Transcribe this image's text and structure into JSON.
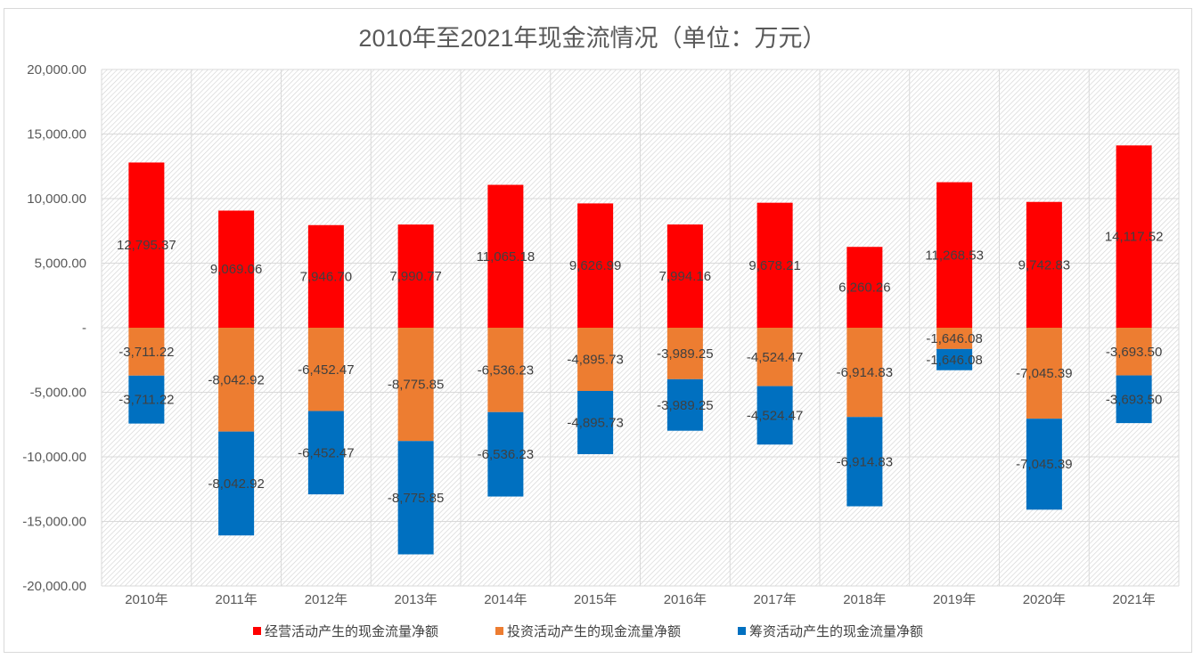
{
  "chart_data": {
    "type": "bar",
    "stacked": true,
    "title": "2010年至2021年现金流情况（单位：万元）",
    "xlabel": "",
    "ylabel": "",
    "ylim": [
      -20000,
      20000
    ],
    "yticks": [
      20000,
      15000,
      10000,
      5000,
      0,
      -5000,
      -10000,
      -15000,
      -20000
    ],
    "ytick_labels": [
      "20,000.00",
      "15,000.00",
      "10,000.00",
      "5,000.00",
      "-",
      "-5,000.00",
      "-10,000.00",
      "-15,000.00",
      "-20,000.00"
    ],
    "grid": true,
    "legend_position": "bottom",
    "categories": [
      "2010年",
      "2011年",
      "2012年",
      "2013年",
      "2014年",
      "2015年",
      "2016年",
      "2017年",
      "2018年",
      "2019年",
      "2020年",
      "2021年"
    ],
    "series": [
      {
        "name": "经营活动产生的现金流量净额",
        "color": "#ff0000",
        "values": [
          12795.37,
          9069.06,
          7946.7,
          7990.77,
          11065.18,
          9626.99,
          7994.16,
          9678.21,
          6260.26,
          11268.53,
          9742.83,
          14117.52
        ]
      },
      {
        "name": "投资活动产生的现金流量净额",
        "color": "#ed7d31",
        "values": [
          -3711.22,
          -8042.92,
          -6452.47,
          -8775.85,
          -6536.23,
          -4895.73,
          -3989.25,
          -4524.47,
          -6914.83,
          -1646.08,
          -7045.39,
          -3693.5
        ]
      },
      {
        "name": "筹资活动产生的现金流量净额",
        "color": "#0070c0",
        "values": [
          -3711.22,
          -8042.92,
          -6452.47,
          -8775.85,
          -6536.23,
          -4895.73,
          -3989.25,
          -4524.47,
          -6914.83,
          -1646.08,
          -7045.39,
          -3693.5
        ]
      }
    ]
  }
}
